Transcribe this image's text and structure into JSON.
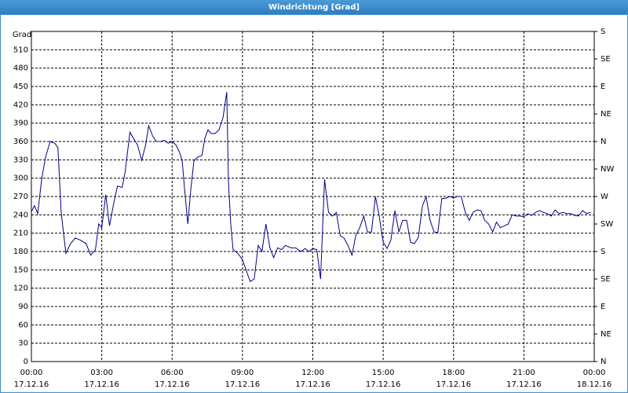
{
  "chart_data": {
    "type": "line",
    "title": "Windrichtung [Grad]",
    "y_label": "Grad",
    "color": "#00008b",
    "grid": true,
    "x": [
      0,
      0.13,
      0.27,
      0.43,
      0.6,
      0.8,
      1,
      1.13,
      1.27,
      1.47,
      1.67,
      1.87,
      2.07,
      2.33,
      2.53,
      2.73,
      2.87,
      3,
      3.17,
      3.33,
      3.5,
      3.67,
      3.87,
      4,
      4.2,
      4.4,
      4.53,
      4.7,
      4.87,
      5,
      5.17,
      5.33,
      5.53,
      5.67,
      5.83,
      6,
      6.17,
      6.33,
      6.43,
      6.53,
      6.67,
      6.8,
      6.93,
      7.07,
      7.27,
      7.4,
      7.53,
      7.67,
      7.83,
      8,
      8.17,
      8.33,
      8.4,
      8.5,
      8.6,
      8.8,
      9,
      9.17,
      9.33,
      9.5,
      9.67,
      9.83,
      10,
      10.17,
      10.33,
      10.5,
      10.67,
      10.83,
      11.07,
      11.27,
      11.5,
      11.67,
      11.83,
      12,
      12.17,
      12.33,
      12.5,
      12.67,
      12.83,
      13,
      13.17,
      13.33,
      13.5,
      13.67,
      13.83,
      14,
      14.17,
      14.33,
      14.5,
      14.67,
      14.83,
      15,
      15.17,
      15.33,
      15.5,
      15.67,
      15.83,
      16,
      16.17,
      16.33,
      16.5,
      16.67,
      16.83,
      17,
      17.17,
      17.33,
      17.5,
      17.67,
      17.83,
      18,
      18.17,
      18.33,
      18.5,
      18.67,
      18.83,
      19,
      19.17,
      19.33,
      19.5,
      19.67,
      19.83,
      20,
      20.17,
      20.33,
      20.5,
      20.67,
      20.83,
      21,
      21.17,
      21.33,
      21.5,
      21.67,
      21.83,
      22,
      22.17,
      22.33,
      22.5,
      22.67,
      22.83,
      23,
      23.17,
      23.33,
      23.5,
      23.67,
      23.83
    ],
    "values": [
      245,
      255,
      242,
      296,
      334,
      360,
      357,
      350,
      244,
      177,
      193,
      202,
      199,
      193,
      174,
      183,
      225,
      219,
      273,
      222,
      257,
      287,
      285,
      311,
      375,
      362,
      354,
      329,
      354,
      386,
      369,
      360,
      360,
      362,
      357,
      360,
      354,
      341,
      328,
      283,
      225,
      283,
      328,
      334,
      337,
      366,
      379,
      373,
      373,
      379,
      399,
      441,
      296,
      225,
      183,
      177,
      167,
      148,
      131,
      135,
      190,
      180,
      225,
      186,
      170,
      186,
      183,
      190,
      186,
      186,
      180,
      185,
      180,
      185,
      183,
      135,
      298,
      244,
      238,
      244,
      206,
      202,
      190,
      174,
      206,
      219,
      238,
      212,
      212,
      270,
      238,
      195,
      185,
      199,
      247,
      212,
      231,
      231,
      195,
      193,
      203,
      254,
      270,
      231,
      212,
      211,
      267,
      267,
      270,
      268,
      270,
      270,
      244,
      231,
      244,
      248,
      247,
      231,
      225,
      212,
      228,
      219,
      222,
      225,
      240,
      238,
      238,
      237,
      242,
      239,
      244,
      247,
      244,
      242,
      238,
      248,
      242,
      244,
      242,
      242,
      239,
      238,
      247,
      242,
      244
    ],
    "xlim": [
      0,
      24
    ],
    "xticks": [
      {
        "value": 0,
        "label": "00:00"
      },
      {
        "value": 3,
        "label": "03:00"
      },
      {
        "value": 6,
        "label": "06:00"
      },
      {
        "value": 9,
        "label": "09:00"
      },
      {
        "value": 12,
        "label": "12:00"
      },
      {
        "value": 15,
        "label": "15:00"
      },
      {
        "value": 18,
        "label": "18:00"
      },
      {
        "value": 21,
        "label": "21:00"
      },
      {
        "value": 24,
        "label": "00:00"
      }
    ],
    "xtick_dates": [
      "17.12.16",
      "17.12.16",
      "17.12.16",
      "17.12.16",
      "17.12.16",
      "17.12.16",
      "17.12.16",
      "17.12.16",
      "18.12.16"
    ],
    "ylim": [
      0,
      540
    ],
    "yticks": [
      0,
      30,
      60,
      90,
      120,
      150,
      180,
      210,
      240,
      270,
      300,
      330,
      360,
      390,
      420,
      450,
      480,
      510
    ],
    "y2lim": [
      0,
      540
    ],
    "y2ticks": [
      {
        "value": 0,
        "label": "N"
      },
      {
        "value": 45,
        "label": "NE"
      },
      {
        "value": 90,
        "label": "E"
      },
      {
        "value": 135,
        "label": "SE"
      },
      {
        "value": 180,
        "label": "S"
      },
      {
        "value": 225,
        "label": "SW"
      },
      {
        "value": 270,
        "label": "W"
      },
      {
        "value": 315,
        "label": "NW"
      },
      {
        "value": 360,
        "label": "N"
      },
      {
        "value": 405,
        "label": "NE"
      },
      {
        "value": 450,
        "label": "E"
      },
      {
        "value": 495,
        "label": "SE"
      },
      {
        "value": 540,
        "label": "S"
      }
    ]
  }
}
